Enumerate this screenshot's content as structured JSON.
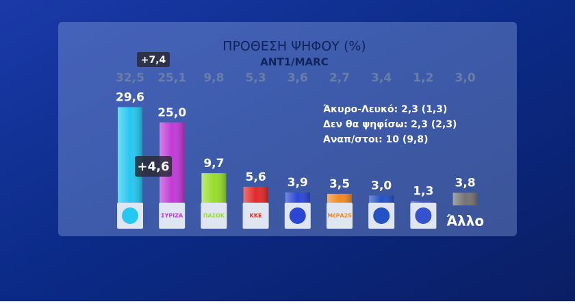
{
  "chart_data": {
    "type": "bar",
    "title": "ΠΡΟΘΕΣΗ ΨΗΦΟΥ (%)",
    "subtitle": "ANT1/MARC",
    "categories": [
      null,
      "ΣΥΡΙΖΑ",
      "ΠΑΣΟΚ",
      "ΚΚΕ",
      null,
      "ΜέΡΑ25",
      null,
      null,
      "Άλλο"
    ],
    "values": [
      29.6,
      25.0,
      9.7,
      5.6,
      3.9,
      3.5,
      3.0,
      1.3,
      3.8
    ],
    "value_labels": [
      "29,6",
      "25,0",
      "9,7",
      "5,6",
      "3,9",
      "3,5",
      "3,0",
      "1,3",
      "3,8"
    ],
    "colors": [
      "#25c8f0",
      "#c23ad6",
      "#98dd2c",
      "#e22a2a",
      "#2c46d4",
      "#f08a22",
      "#2452c4",
      "#3452d0",
      "#747474"
    ],
    "previous_values": [
      32.5,
      25.1,
      9.8,
      5.3,
      3.6,
      2.7,
      3.4,
      1.2,
      3.0
    ],
    "previous_labels": [
      "32,5",
      "25,1",
      "9,8",
      "5,3",
      "3,6",
      "2,7",
      "3,4",
      "1,2",
      "3,0"
    ],
    "annotations": [
      "+7,4",
      "+4,6"
    ],
    "notes": [
      "Άκυρο-Λευκό: 2,3 (1,3)",
      "Δεν θα ψηφίσω: 2,3 (2,3)",
      "Αναπ/στοι: 10 (9,8)"
    ]
  }
}
